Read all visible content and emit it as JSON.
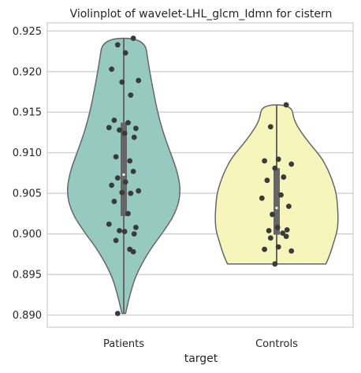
{
  "chart_data": {
    "type": "violin",
    "title": "Violinplot of wavelet-LHL_glcm_Idmn for cistern",
    "xlabel": "target",
    "ylabel": "",
    "ylim": [
      0.8885,
      0.926
    ],
    "yticks": [
      0.89,
      0.895,
      0.9,
      0.905,
      0.91,
      0.915,
      0.92,
      0.925
    ],
    "ytick_labels": [
      "0.890",
      "0.895",
      "0.900",
      "0.905",
      "0.910",
      "0.915",
      "0.920",
      "0.925"
    ],
    "grid": "horizontal",
    "categories": [
      "Patients",
      "Controls"
    ],
    "colors": {
      "Patients": "#96cac1",
      "Controls": "#f6f6bc",
      "outline": "#666666",
      "points": "#3a3a3a"
    },
    "groups": [
      {
        "name": "Patients",
        "min": 0.8902,
        "max": 0.9241,
        "q1": 0.9022,
        "median": 0.9073,
        "q3": 0.9137,
        "density": [
          [
            0.8902,
            0.03
          ],
          [
            0.8925,
            0.1
          ],
          [
            0.895,
            0.2
          ],
          [
            0.898,
            0.42
          ],
          [
            0.9,
            0.62
          ],
          [
            0.9025,
            0.84
          ],
          [
            0.905,
            0.93
          ],
          [
            0.9075,
            0.88
          ],
          [
            0.91,
            0.76
          ],
          [
            0.9125,
            0.64
          ],
          [
            0.915,
            0.55
          ],
          [
            0.918,
            0.47
          ],
          [
            0.921,
            0.4
          ],
          [
            0.9241,
            0.34
          ]
        ],
        "points": [
          0.9241,
          0.9233,
          0.9223,
          0.9203,
          0.9189,
          0.9187,
          0.9171,
          0.914,
          0.9137,
          0.9131,
          0.913,
          0.9128,
          0.9124,
          0.9119,
          0.9095,
          0.909,
          0.9077,
          0.9069,
          0.9064,
          0.906,
          0.9053,
          0.9051,
          0.905,
          0.904,
          0.9025,
          0.9012,
          0.9008,
          0.9004,
          0.9003,
          0.9,
          0.8992,
          0.8981,
          0.8978,
          0.8902
        ]
      },
      {
        "name": "Controls",
        "min": 0.8963,
        "max": 0.9159,
        "q1": 0.8999,
        "median": 0.9032,
        "q3": 0.9081,
        "density": [
          [
            0.8963,
            0.8
          ],
          [
            0.8975,
            0.87
          ],
          [
            0.899,
            0.93
          ],
          [
            0.9005,
            0.99
          ],
          [
            0.902,
            1.0
          ],
          [
            0.9035,
            0.99
          ],
          [
            0.905,
            0.97
          ],
          [
            0.9065,
            0.91
          ],
          [
            0.908,
            0.83
          ],
          [
            0.9095,
            0.72
          ],
          [
            0.911,
            0.55
          ],
          [
            0.9125,
            0.4
          ],
          [
            0.914,
            0.28
          ],
          [
            0.9159,
            0.24
          ]
        ],
        "points": [
          0.9159,
          0.9132,
          0.9092,
          0.909,
          0.9086,
          0.9081,
          0.907,
          0.9066,
          0.9048,
          0.9044,
          0.9034,
          0.9024,
          0.9008,
          0.9005,
          0.9004,
          0.9001,
          0.8997,
          0.8995,
          0.8984,
          0.8981,
          0.8979,
          0.8963
        ]
      }
    ]
  }
}
